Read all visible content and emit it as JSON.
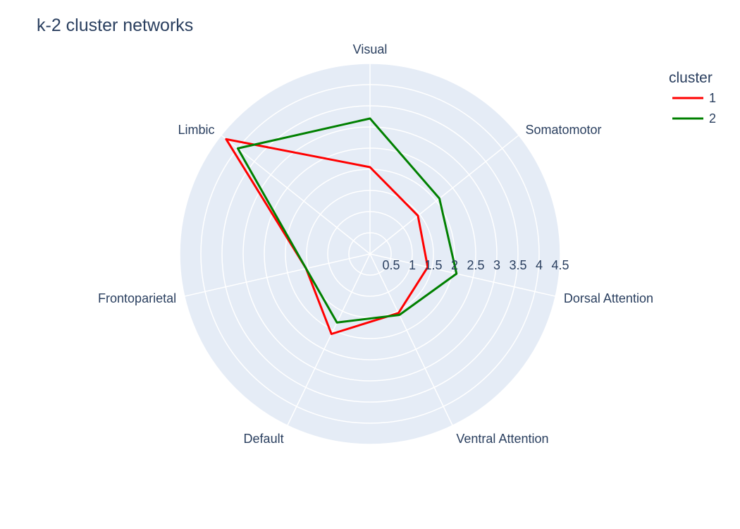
{
  "chart_data": {
    "type": "radar",
    "title": "k-2 cluster networks",
    "categories": [
      "Visual",
      "Somatomotor",
      "Dorsal Attention",
      "Ventral Attention",
      "Default",
      "Frontoparietal",
      "Limbic"
    ],
    "radial_ticks": [
      "0.5",
      "1",
      "1.5",
      "2",
      "2.5",
      "3",
      "3.5",
      "4",
      "4.5"
    ],
    "rlim": [
      0.5,
      4.5
    ],
    "grid": true,
    "legend": {
      "title": "cluster",
      "position": "top-right"
    },
    "series": [
      {
        "name": "1",
        "color": "#ff0000",
        "values": [
          2.05,
          1.45,
          1.4,
          1.55,
          2.1,
          1.55,
          4.35
        ]
      },
      {
        "name": "2",
        "color": "#008000",
        "values": [
          3.2,
          2.1,
          2.1,
          1.6,
          1.8,
          1.55,
          4.0
        ]
      }
    ],
    "background_color": "#e5ecf6",
    "grid_color": "#ffffff"
  }
}
